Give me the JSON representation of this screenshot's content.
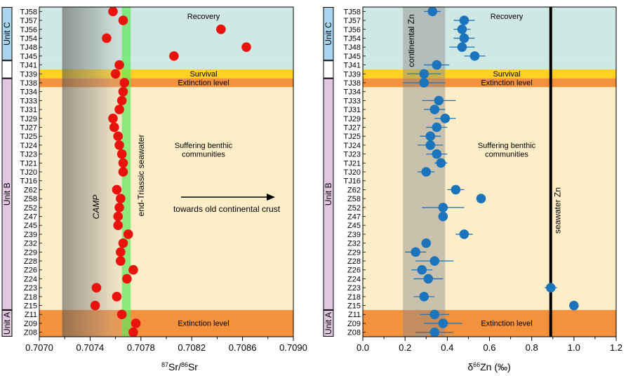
{
  "samples": [
    "TJ58",
    "TJ57",
    "TJ56",
    "TJ54",
    "TJ48",
    "TJ45",
    "TJ41",
    "TJ39",
    "TJ38",
    "TJ34",
    "TJ33",
    "TJ31",
    "TJ29",
    "TJ27",
    "TJ25",
    "TJ24",
    "TJ23",
    "TJ21",
    "TJ20",
    "TJ16",
    "Z62",
    "Z58",
    "Z52",
    "Z47",
    "Z45",
    "Z39",
    "Z32",
    "Z29",
    "Z28",
    "Z26",
    "Z24",
    "Z23",
    "Z18",
    "Z15",
    "Z11",
    "Z09",
    "Z08"
  ],
  "units": [
    {
      "label": "Unit C",
      "color": "#a9d6ee",
      "first": "TJ58",
      "last": "TJ45"
    },
    {
      "label": "",
      "color": "#ffffff",
      "first": "TJ41",
      "last": "TJ39"
    },
    {
      "label": "Unit B",
      "color": "#e2c7e0",
      "first": "TJ38",
      "last": "Z15"
    },
    {
      "label": "Unit A",
      "color": "#e2c7e0",
      "first": "Z11",
      "last": "Z08"
    }
  ],
  "zones": {
    "recovery": {
      "label": "Recovery",
      "color": "#cfe8e3"
    },
    "survival": {
      "label": "Survival",
      "color": "#ffd21f"
    },
    "extinction": {
      "label": "Extinction level",
      "color": "#f3913d"
    },
    "suffering": {
      "label_lines": [
        "Suffering benthic",
        "communities"
      ],
      "color": "#fdeec8"
    }
  },
  "chart_data": [
    {
      "type": "scatter",
      "xlabel_sup": "87",
      "xlabel_mid": "Sr/",
      "xlabel_sup2": "86",
      "xlabel_end": "Sr",
      "xlim": [
        0.707,
        0.709
      ],
      "xticks": [
        "0.7070",
        "0.7074",
        "0.7078",
        "0.7082",
        "0.7086",
        "0.7090"
      ],
      "xtick_values": [
        0.707,
        0.7074,
        0.7078,
        0.7082,
        0.7086,
        0.709
      ],
      "marker_color": "#e8130c",
      "camp_band": {
        "label": "CAMP",
        "x0": 0.70718,
        "x1": 0.70766
      },
      "seawater_band": {
        "label": "end-Triassic seawater",
        "x0": 0.70765,
        "x1": 0.70772
      },
      "arrow_label": "towards old continental crust",
      "points": [
        {
          "sample": "TJ58",
          "x": 0.70758
        },
        {
          "sample": "TJ57",
          "x": 0.70766
        },
        {
          "sample": "TJ56",
          "x": 0.70843
        },
        {
          "sample": "TJ54",
          "x": 0.70753
        },
        {
          "sample": "TJ48",
          "x": 0.70863
        },
        {
          "sample": "TJ45",
          "x": 0.70806
        },
        {
          "sample": "TJ41",
          "x": 0.70763
        },
        {
          "sample": "TJ39",
          "x": 0.7076
        },
        {
          "sample": "TJ38",
          "x": 0.70767
        },
        {
          "sample": "TJ34",
          "x": 0.70766
        },
        {
          "sample": "TJ33",
          "x": 0.70765
        },
        {
          "sample": "TJ31",
          "x": 0.70763
        },
        {
          "sample": "TJ29",
          "x": 0.70758
        },
        {
          "sample": "TJ27",
          "x": 0.70759
        },
        {
          "sample": "TJ25",
          "x": 0.70762
        },
        {
          "sample": "TJ24",
          "x": 0.70763
        },
        {
          "sample": "TJ23",
          "x": 0.70765
        },
        {
          "sample": "TJ21",
          "x": 0.70766
        },
        {
          "sample": "TJ20",
          "x": 0.70766
        },
        {
          "sample": "Z62",
          "x": 0.70761
        },
        {
          "sample": "Z58",
          "x": 0.70764
        },
        {
          "sample": "Z52",
          "x": 0.70763
        },
        {
          "sample": "Z47",
          "x": 0.70762
        },
        {
          "sample": "Z45",
          "x": 0.70762
        },
        {
          "sample": "Z39",
          "x": 0.7077
        },
        {
          "sample": "Z32",
          "x": 0.70766
        },
        {
          "sample": "Z29",
          "x": 0.70764
        },
        {
          "sample": "Z28",
          "x": 0.70764
        },
        {
          "sample": "Z26",
          "x": 0.70774
        },
        {
          "sample": "Z24",
          "x": 0.70769
        },
        {
          "sample": "Z23",
          "x": 0.70745
        },
        {
          "sample": "Z18",
          "x": 0.70761
        },
        {
          "sample": "Z15",
          "x": 0.70744
        },
        {
          "sample": "Z11",
          "x": 0.70765
        },
        {
          "sample": "Z09",
          "x": 0.70776
        },
        {
          "sample": "Z08",
          "x": 0.70774
        }
      ]
    },
    {
      "type": "scatter",
      "xlabel_pre": "δ",
      "xlabel_sup": "66",
      "xlabel_end": "Zn (‰)",
      "xlim": [
        0.0,
        1.2
      ],
      "xticks": [
        "0.0",
        "0.2",
        "0.4",
        "0.6",
        "0.8",
        "1.0",
        "1.2"
      ],
      "xtick_values": [
        0.0,
        0.2,
        0.4,
        0.6,
        0.8,
        1.0,
        1.2
      ],
      "marker_color": "#1c75bc",
      "continental_band": {
        "label": "continental Zn",
        "x0": 0.19,
        "x1": 0.39
      },
      "seawater_line": {
        "label": "seawater Zn",
        "x": 0.89
      },
      "points": [
        {
          "sample": "TJ58",
          "x": 0.33,
          "err": 0.04
        },
        {
          "sample": "TJ57",
          "x": 0.48,
          "err": 0.05
        },
        {
          "sample": "TJ56",
          "x": 0.47,
          "err": 0.04
        },
        {
          "sample": "TJ54",
          "x": 0.48,
          "err": 0.05
        },
        {
          "sample": "TJ48",
          "x": 0.47,
          "err": 0.06
        },
        {
          "sample": "TJ45",
          "x": 0.53,
          "err": 0.05
        },
        {
          "sample": "TJ41",
          "x": 0.35,
          "err": 0.06
        },
        {
          "sample": "TJ39",
          "x": 0.29,
          "err": 0.08
        },
        {
          "sample": "TJ38",
          "x": 0.29,
          "err": 0.1
        },
        {
          "sample": "TJ33",
          "x": 0.36,
          "err": 0.08
        },
        {
          "sample": "TJ31",
          "x": 0.34,
          "err": 0.05
        },
        {
          "sample": "TJ29",
          "x": 0.39,
          "err": 0.05
        },
        {
          "sample": "TJ27",
          "x": 0.35,
          "err": 0.05
        },
        {
          "sample": "TJ25",
          "x": 0.32,
          "err": 0.05
        },
        {
          "sample": "TJ24",
          "x": 0.32,
          "err": 0.06
        },
        {
          "sample": "TJ23",
          "x": 0.35,
          "err": 0.05
        },
        {
          "sample": "TJ21",
          "x": 0.37,
          "err": 0.03
        },
        {
          "sample": "TJ20",
          "x": 0.3,
          "err": 0.04
        },
        {
          "sample": "Z62",
          "x": 0.44,
          "err": 0.04
        },
        {
          "sample": "Z58",
          "x": 0.56,
          "err": 0.0
        },
        {
          "sample": "Z52",
          "x": 0.38,
          "err": 0.1
        },
        {
          "sample": "Z47",
          "x": 0.38,
          "err": 0.02
        },
        {
          "sample": "Z39",
          "x": 0.48,
          "err": 0.04
        },
        {
          "sample": "Z32",
          "x": 0.3,
          "err": 0.0
        },
        {
          "sample": "Z29",
          "x": 0.25,
          "err": 0.05
        },
        {
          "sample": "Z28",
          "x": 0.34,
          "err": 0.09
        },
        {
          "sample": "Z26",
          "x": 0.28,
          "err": 0.05
        },
        {
          "sample": "Z24",
          "x": 0.31,
          "err": 0.07
        },
        {
          "sample": "Z23",
          "x": 0.89,
          "err": 0.03
        },
        {
          "sample": "Z18",
          "x": 0.29,
          "err": 0.05
        },
        {
          "sample": "Z15",
          "x": 1.0,
          "err": 0.0
        },
        {
          "sample": "Z11",
          "x": 0.34,
          "err": 0.07
        },
        {
          "sample": "Z09",
          "x": 0.38,
          "err": 0.09
        },
        {
          "sample": "Z08",
          "x": 0.34,
          "err": 0.09
        }
      ]
    }
  ]
}
